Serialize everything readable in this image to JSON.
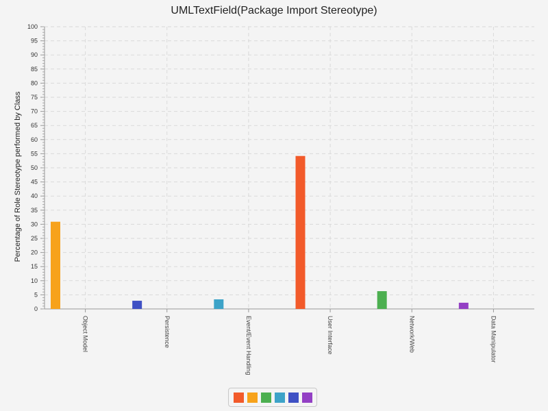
{
  "chart_data": {
    "type": "bar",
    "title": "UMLTextField(Package Import Stereotype)",
    "xlabel": "",
    "ylabel": "Percentage of Role Stereotype performed by Class",
    "ylim": [
      0,
      100
    ],
    "yticks": [
      0,
      5,
      10,
      15,
      20,
      25,
      30,
      35,
      40,
      45,
      50,
      55,
      60,
      65,
      70,
      75,
      80,
      85,
      90,
      95,
      100
    ],
    "categories": [
      "Object Model",
      "Persistence",
      "Event/Event Handling",
      "User Interface",
      "Network/Web",
      "Data Manipulator"
    ],
    "series": [
      {
        "color": "#f25a2a",
        "values": [
          0,
          0,
          0,
          54.2,
          0,
          0
        ]
      },
      {
        "color": "#f7a21b",
        "values": [
          30.9,
          0,
          0,
          0,
          0,
          0
        ]
      },
      {
        "color": "#4caf50",
        "values": [
          0,
          0,
          0,
          0,
          6.3,
          0
        ]
      },
      {
        "color": "#3da3c8",
        "values": [
          0,
          0,
          3.4,
          0,
          0,
          0
        ]
      },
      {
        "color": "#3f51c4",
        "values": [
          0,
          2.9,
          0,
          0,
          0,
          0
        ]
      },
      {
        "color": "#9340c4",
        "values": [
          0,
          0,
          0,
          0,
          0,
          2.2
        ]
      }
    ],
    "bar_order": [
      1,
      4,
      3,
      0,
      2,
      5
    ],
    "grid": true,
    "legend_position": "bottom-center"
  }
}
